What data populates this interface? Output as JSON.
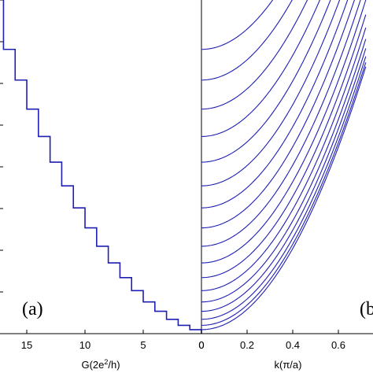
{
  "chart_data": [
    {
      "panel_label": "(a)",
      "type": "line",
      "style": "staircase",
      "xlabel": "G(2e²/h)",
      "xlabel_parts": [
        "G(2e",
        "2",
        "/h)"
      ],
      "x_axis_reversed": true,
      "xlim": [
        17.3,
        0
      ],
      "ylim": [
        0,
        1
      ],
      "x_ticks": [
        15,
        10,
        5,
        0
      ],
      "x_tick_labels": [
        "15",
        "10",
        "5",
        "0"
      ],
      "y_tick_labels": [],
      "line_color": "#1f1fb4",
      "series": [
        {
          "conductance_steps": [
            0,
            1,
            2,
            3,
            4,
            5,
            6,
            7,
            8,
            9,
            10,
            11,
            12,
            13,
            14,
            15,
            16,
            17
          ],
          "step_onsets_fraction_of_height": [
            0.012,
            0.025,
            0.043,
            0.067,
            0.095,
            0.129,
            0.168,
            0.212,
            0.262,
            0.317,
            0.377,
            0.443,
            0.514,
            0.591,
            0.673,
            0.76,
            0.852,
            0.95
          ]
        }
      ]
    },
    {
      "panel_label": "(b",
      "type": "line",
      "xlabel": "k(π/a)",
      "xlim": [
        0,
        0.72
      ],
      "ylim": [
        0,
        1
      ],
      "x_ticks": [
        0,
        0.2,
        0.4,
        0.6
      ],
      "x_tick_labels": [
        "0",
        "0.2",
        "0.4",
        "0.6"
      ],
      "line_color": "#1f1fb4",
      "series_count": 17,
      "series_description_values": {
        "band_offsets_fraction_of_height": [
          0.012,
          0.025,
          0.043,
          0.067,
          0.095,
          0.129,
          0.168,
          0.212,
          0.262,
          0.317,
          0.377,
          0.443,
          0.514,
          0.591,
          0.673,
          0.76,
          0.852
        ],
        "curvature": 1.52
      }
    }
  ]
}
